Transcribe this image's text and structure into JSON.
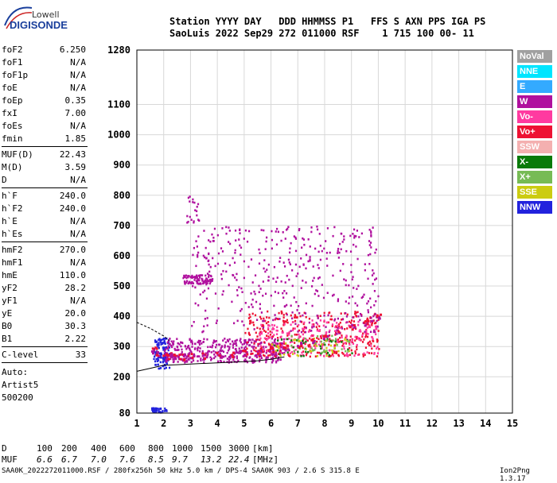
{
  "logo": {
    "line1": "Lowell",
    "line2": "DIGISONDE"
  },
  "header": {
    "row1": "Station YYYY DAY   DDD HHMMSS P1   FFS S AXN PPS IGA PS",
    "row2": "SaoLuis 2022 Sep29 272 011000 RSF    1 715 100 00- 11"
  },
  "params": [
    {
      "label": "foF2",
      "value": "6.250"
    },
    {
      "label": "foF1",
      "value": "N/A"
    },
    {
      "label": "foF1p",
      "value": "N/A"
    },
    {
      "label": "foE",
      "value": "N/A"
    },
    {
      "label": "foEp",
      "value": "0.35"
    },
    {
      "label": "fxI",
      "value": "7.00"
    },
    {
      "label": "foEs",
      "value": "N/A"
    },
    {
      "label": "fmin",
      "value": "1.85"
    },
    {
      "label": "MUF(D)",
      "value": "22.43"
    },
    {
      "label": "M(D)",
      "value": "3.59"
    },
    {
      "label": "D",
      "value": "N/A"
    },
    {
      "label": "h`F",
      "value": "240.0"
    },
    {
      "label": "h`F2",
      "value": "240.0"
    },
    {
      "label": "h`E",
      "value": "N/A"
    },
    {
      "label": "h`Es",
      "value": "N/A"
    },
    {
      "label": "hmF2",
      "value": "270.0"
    },
    {
      "label": "hmF1",
      "value": "N/A"
    },
    {
      "label": "hmE",
      "value": "110.0"
    },
    {
      "label": "yF2",
      "value": "28.2"
    },
    {
      "label": "yF1",
      "value": "N/A"
    },
    {
      "label": "yE",
      "value": "20.0"
    },
    {
      "label": "B0",
      "value": "30.3"
    },
    {
      "label": "B1",
      "value": "2.22"
    },
    {
      "label": "C-level",
      "value": "33"
    }
  ],
  "scaling": {
    "line1": "Auto:",
    "line2": "Artist5",
    "line3": "500200"
  },
  "legend": [
    {
      "label": "NoVal",
      "color": "#a0a0a0"
    },
    {
      "label": "NNE",
      "color": "#00e5ff"
    },
    {
      "label": "E",
      "color": "#33aaff"
    },
    {
      "label": "W",
      "color": "#b0109e"
    },
    {
      "label": "Vo-",
      "color": "#ff3aa0"
    },
    {
      "label": "Vo+",
      "color": "#ee1133"
    },
    {
      "label": "SSW",
      "color": "#f4b0b0"
    },
    {
      "label": "X-",
      "color": "#0a7a0a"
    },
    {
      "label": "X+",
      "color": "#77bb55"
    },
    {
      "label": "SSE",
      "color": "#cccc11"
    },
    {
      "label": "NNW",
      "color": "#2222dd"
    }
  ],
  "muf_table": {
    "d_label": "D",
    "d_values": [
      "100",
      "200",
      "400",
      "600",
      "800",
      "1000",
      "1500",
      "3000"
    ],
    "d_unit": "[km]",
    "muf_label": "MUF",
    "muf_values": [
      "6.6",
      "6.7",
      "7.0",
      "7.6",
      "8.5",
      "9.7",
      "13.2",
      "22.4"
    ],
    "muf_unit": "[MHz]"
  },
  "footer": "SAA0K_2022272011000.RSF / 280fx256h 50 kHz 5.0 km / DPS-4 SAA0K 903 / 2.6 S 315.8 E",
  "version": "Ion2Png 1.3.17",
  "chart_data": {
    "type": "scatter",
    "x_ticks": [
      1,
      2,
      3,
      4,
      5,
      6,
      7,
      8,
      9,
      10,
      11,
      12,
      13,
      14,
      15
    ],
    "y_ticks": [
      80,
      200,
      300,
      400,
      500,
      600,
      700,
      800,
      900,
      1000,
      1100,
      1280
    ],
    "xlim": [
      1,
      15
    ],
    "ylim": [
      80,
      1280
    ],
    "grid": true,
    "legend_position": "right",
    "x_frequency": [
      1.6,
      1.8,
      2.0,
      2.2,
      2.4,
      2.6,
      2.8,
      3.0,
      3.5,
      4.0,
      4.5,
      5.0,
      5.5,
      6.0,
      6.5,
      7.0,
      7.5,
      8.0,
      8.5,
      9.0,
      9.5,
      10.0
    ],
    "y_height": [
      290,
      280,
      275,
      272,
      270,
      268,
      268,
      270,
      272,
      275,
      278,
      282,
      286,
      292,
      300,
      310,
      320,
      335,
      350,
      365,
      380,
      400
    ],
    "trace_curve_x": [
      1,
      1.5,
      2,
      2.5,
      3,
      3.5,
      4,
      4.5,
      5,
      5.5,
      6,
      6.5
    ],
    "trace_curve_y": [
      218,
      228,
      238,
      240,
      242,
      244,
      246,
      248,
      250,
      253,
      258,
      266
    ],
    "upper_curve_x": [
      1,
      1.5,
      2,
      2.2
    ],
    "upper_curve_y": [
      380,
      360,
      335,
      320
    ],
    "point_clouds": [
      {
        "x_range": [
          1.6,
          2.2
        ],
        "y_range": [
          230,
          330
        ],
        "color": "#2222dd",
        "count": 120
      },
      {
        "x_range": [
          2.0,
          6.5
        ],
        "y_range": [
          250,
          330
        ],
        "color": "#b0109e",
        "count": 380
      },
      {
        "x_range": [
          5.0,
          10.0
        ],
        "y_range": [
          270,
          420
        ],
        "color": "#ee1133",
        "count": 340
      },
      {
        "x_range": [
          5.5,
          10.0
        ],
        "y_range": [
          270,
          390
        ],
        "color": "#ff3aa0",
        "count": 200
      },
      {
        "x_range": [
          3.0,
          10.0
        ],
        "y_range": [
          350,
          700
        ],
        "color": "#b0109e",
        "count": 420
      },
      {
        "x_range": [
          2.7,
          3.8
        ],
        "y_range": [
          510,
          540
        ],
        "color": "#b0109e",
        "count": 80
      },
      {
        "x_range": [
          2.8,
          3.3
        ],
        "y_range": [
          700,
          800
        ],
        "color": "#b0109e",
        "count": 20
      },
      {
        "x_range": [
          1.5,
          2.1
        ],
        "y_range": [
          85,
          100
        ],
        "color": "#2222dd",
        "count": 40
      },
      {
        "x_range": [
          6.0,
          9.0
        ],
        "y_range": [
          270,
          330
        ],
        "color": "#0a7a0a",
        "count": 40
      },
      {
        "x_range": [
          6.0,
          9.0
        ],
        "y_range": [
          270,
          330
        ],
        "color": "#cccc11",
        "count": 40
      },
      {
        "x_range": [
          6.5,
          9.0
        ],
        "y_range": [
          280,
          340
        ],
        "color": "#77bb55",
        "count": 30
      }
    ]
  }
}
